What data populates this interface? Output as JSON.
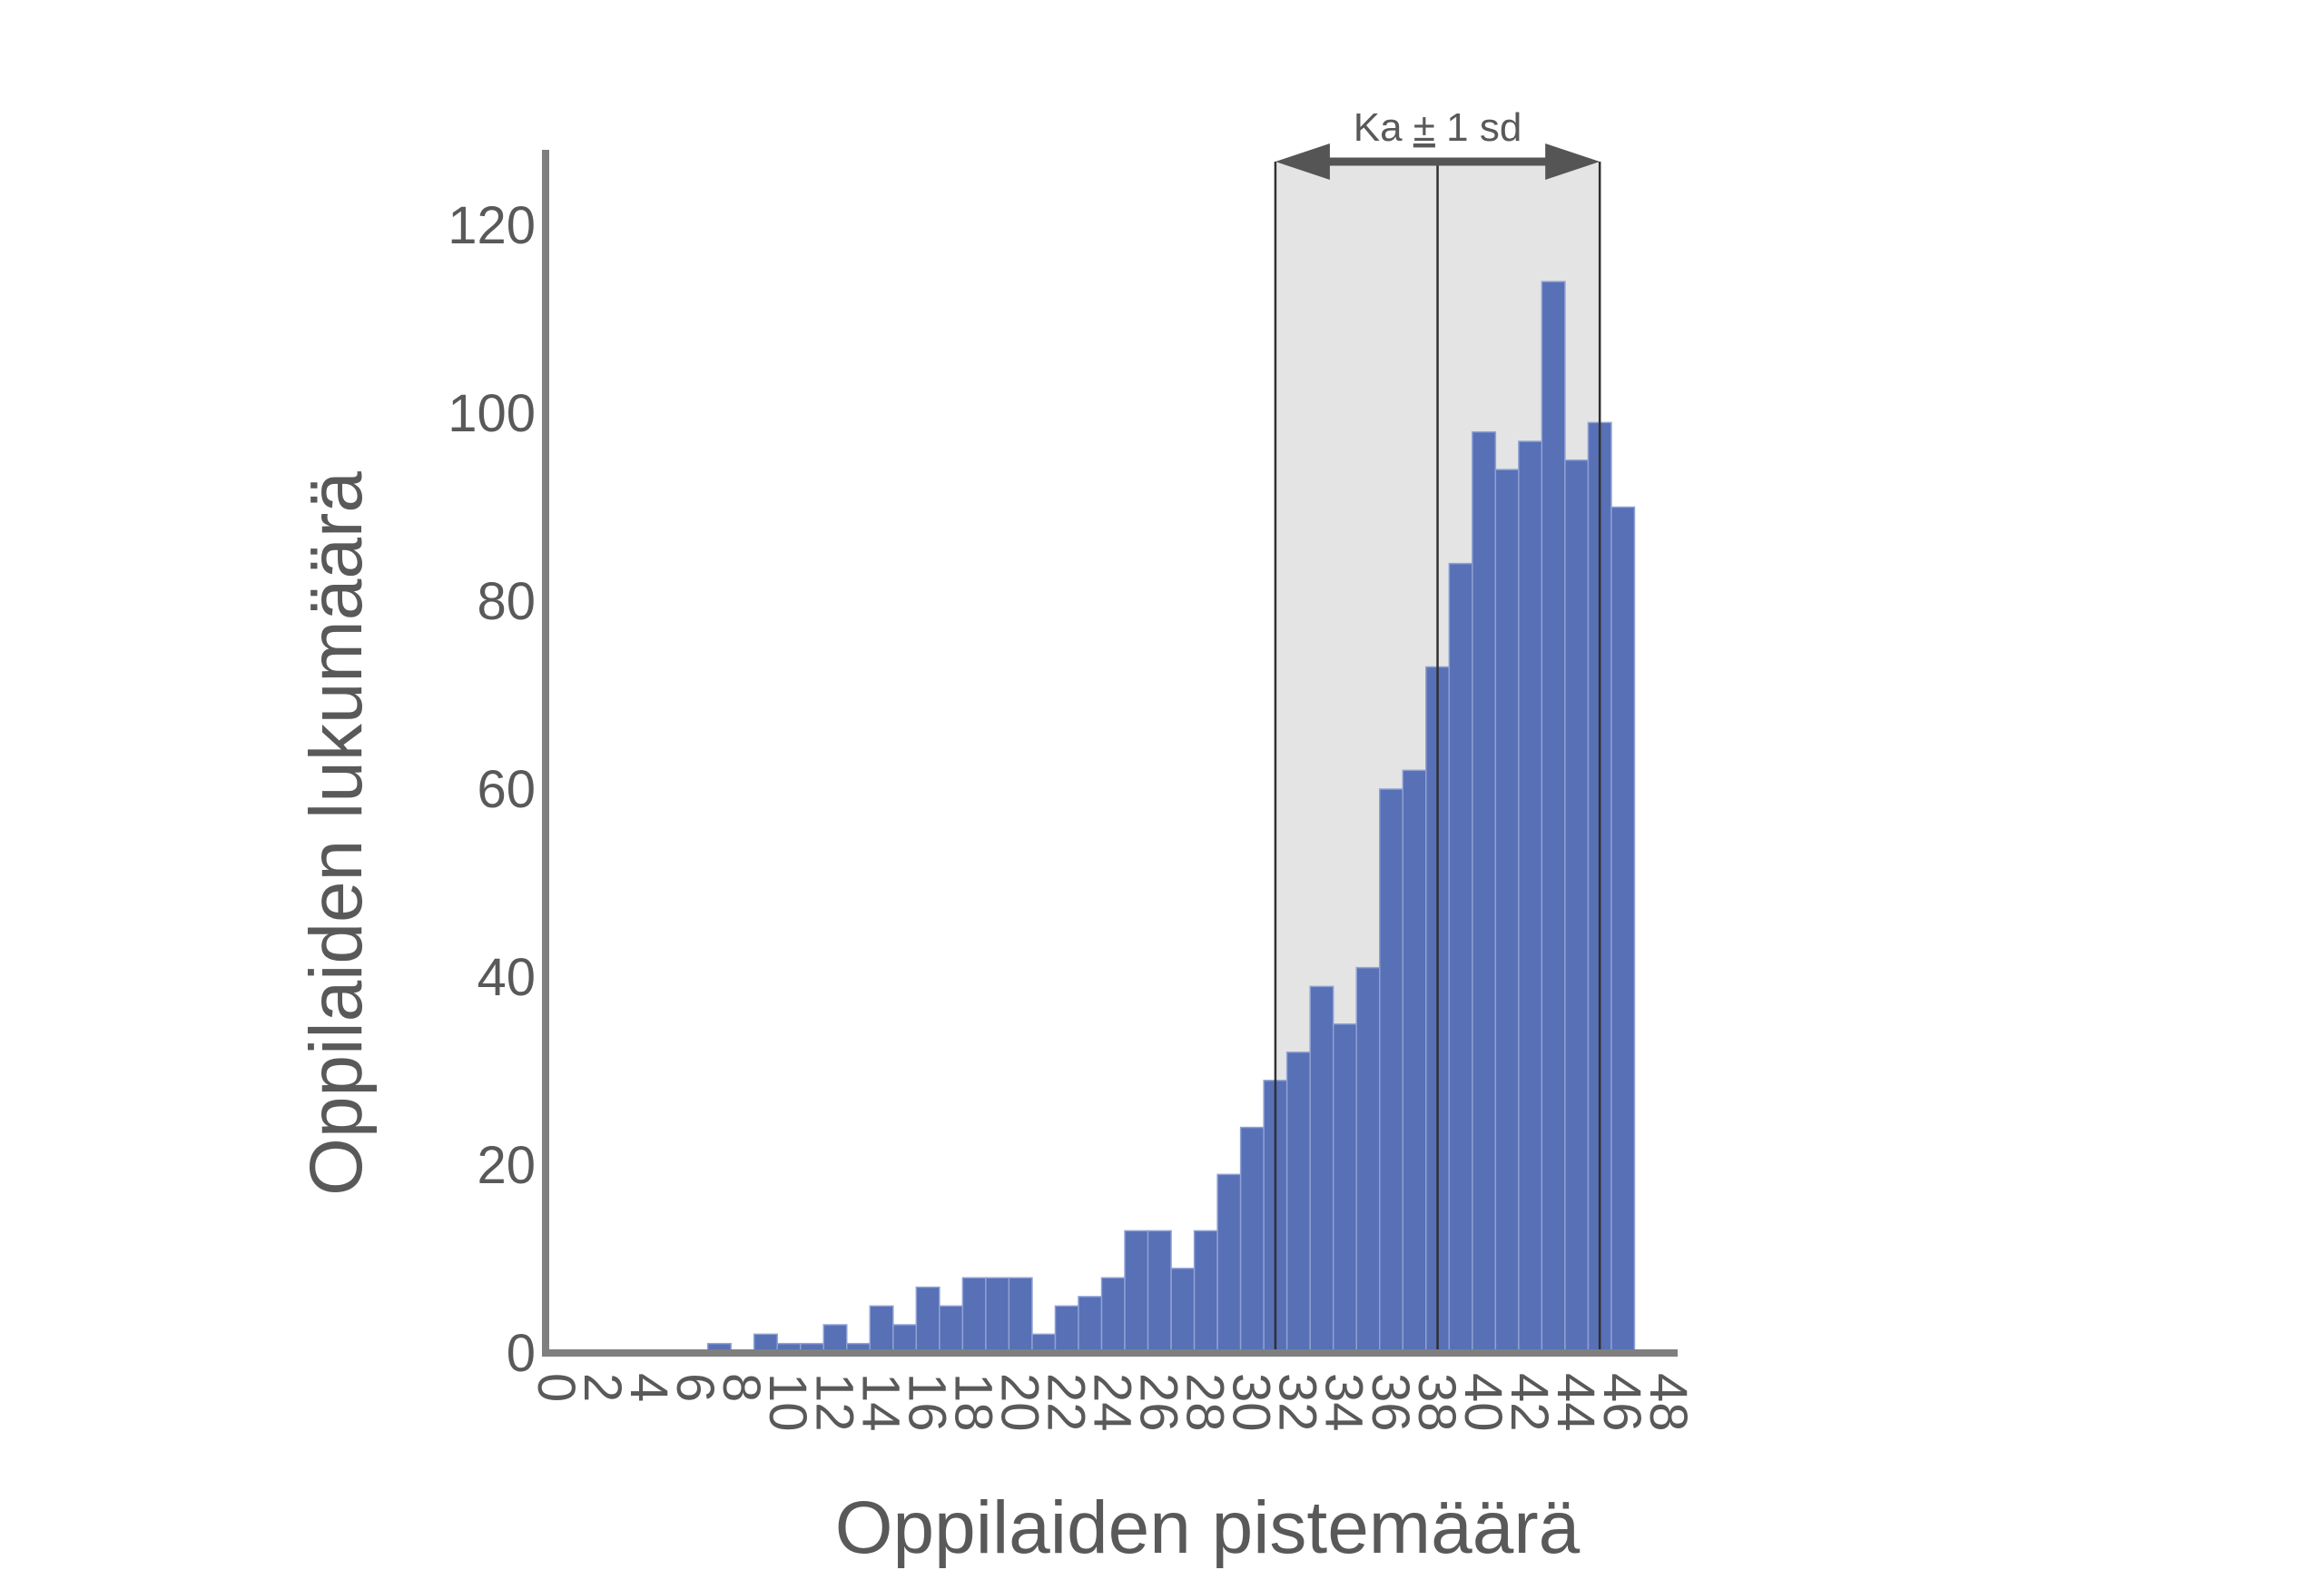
{
  "chart_data": {
    "type": "bar",
    "xlabel": "Oppilaiden pistemäärä",
    "ylabel": "Oppilaiden lukumäärä",
    "xlim": [
      0,
      48
    ],
    "ylim": [
      0,
      128
    ],
    "x_tick_labels": [
      "0",
      "2",
      "4",
      "6",
      "8",
      "10",
      "12",
      "14",
      "16",
      "18",
      "20",
      "22",
      "24",
      "26",
      "28",
      "30",
      "32",
      "34",
      "36",
      "38",
      "40",
      "42",
      "44",
      "46",
      "48"
    ],
    "y_tick_labels": [
      "0",
      "20",
      "40",
      "60",
      "80",
      "100",
      "120"
    ],
    "y_ticks": [
      0,
      20,
      40,
      60,
      80,
      100,
      120
    ],
    "categories": [
      0,
      1,
      2,
      3,
      4,
      5,
      6,
      7,
      8,
      9,
      10,
      11,
      12,
      13,
      14,
      15,
      16,
      17,
      18,
      19,
      20,
      21,
      22,
      23,
      24,
      25,
      26,
      27,
      28,
      29,
      30,
      31,
      32,
      33,
      34,
      35,
      36,
      37,
      38,
      39,
      40,
      41,
      42,
      43,
      44,
      45,
      46,
      47
    ],
    "values": [
      0,
      0,
      0,
      0,
      0,
      0,
      0,
      1,
      0,
      2,
      1,
      1,
      3,
      1,
      5,
      3,
      7,
      5,
      8,
      8,
      8,
      2,
      5,
      6,
      8,
      13,
      13,
      9,
      13,
      19,
      24,
      29,
      32,
      39,
      35,
      41,
      60,
      62,
      73,
      84,
      98,
      94,
      97,
      114,
      95,
      99,
      90,
      0
    ],
    "colors": {
      "bar": "#5770b6",
      "bar_edge": "#8fa1d3",
      "band": "#e4e4e4",
      "axis": "#7f7f7f",
      "band_line": "#303030",
      "arrow": "#555555"
    },
    "grid": false,
    "annotation": {
      "label_parts": [
        "Ka",
        "±",
        "1 sd"
      ],
      "mean": 38.5,
      "minus_sd": 31.5,
      "plus_sd": 45.5
    }
  }
}
